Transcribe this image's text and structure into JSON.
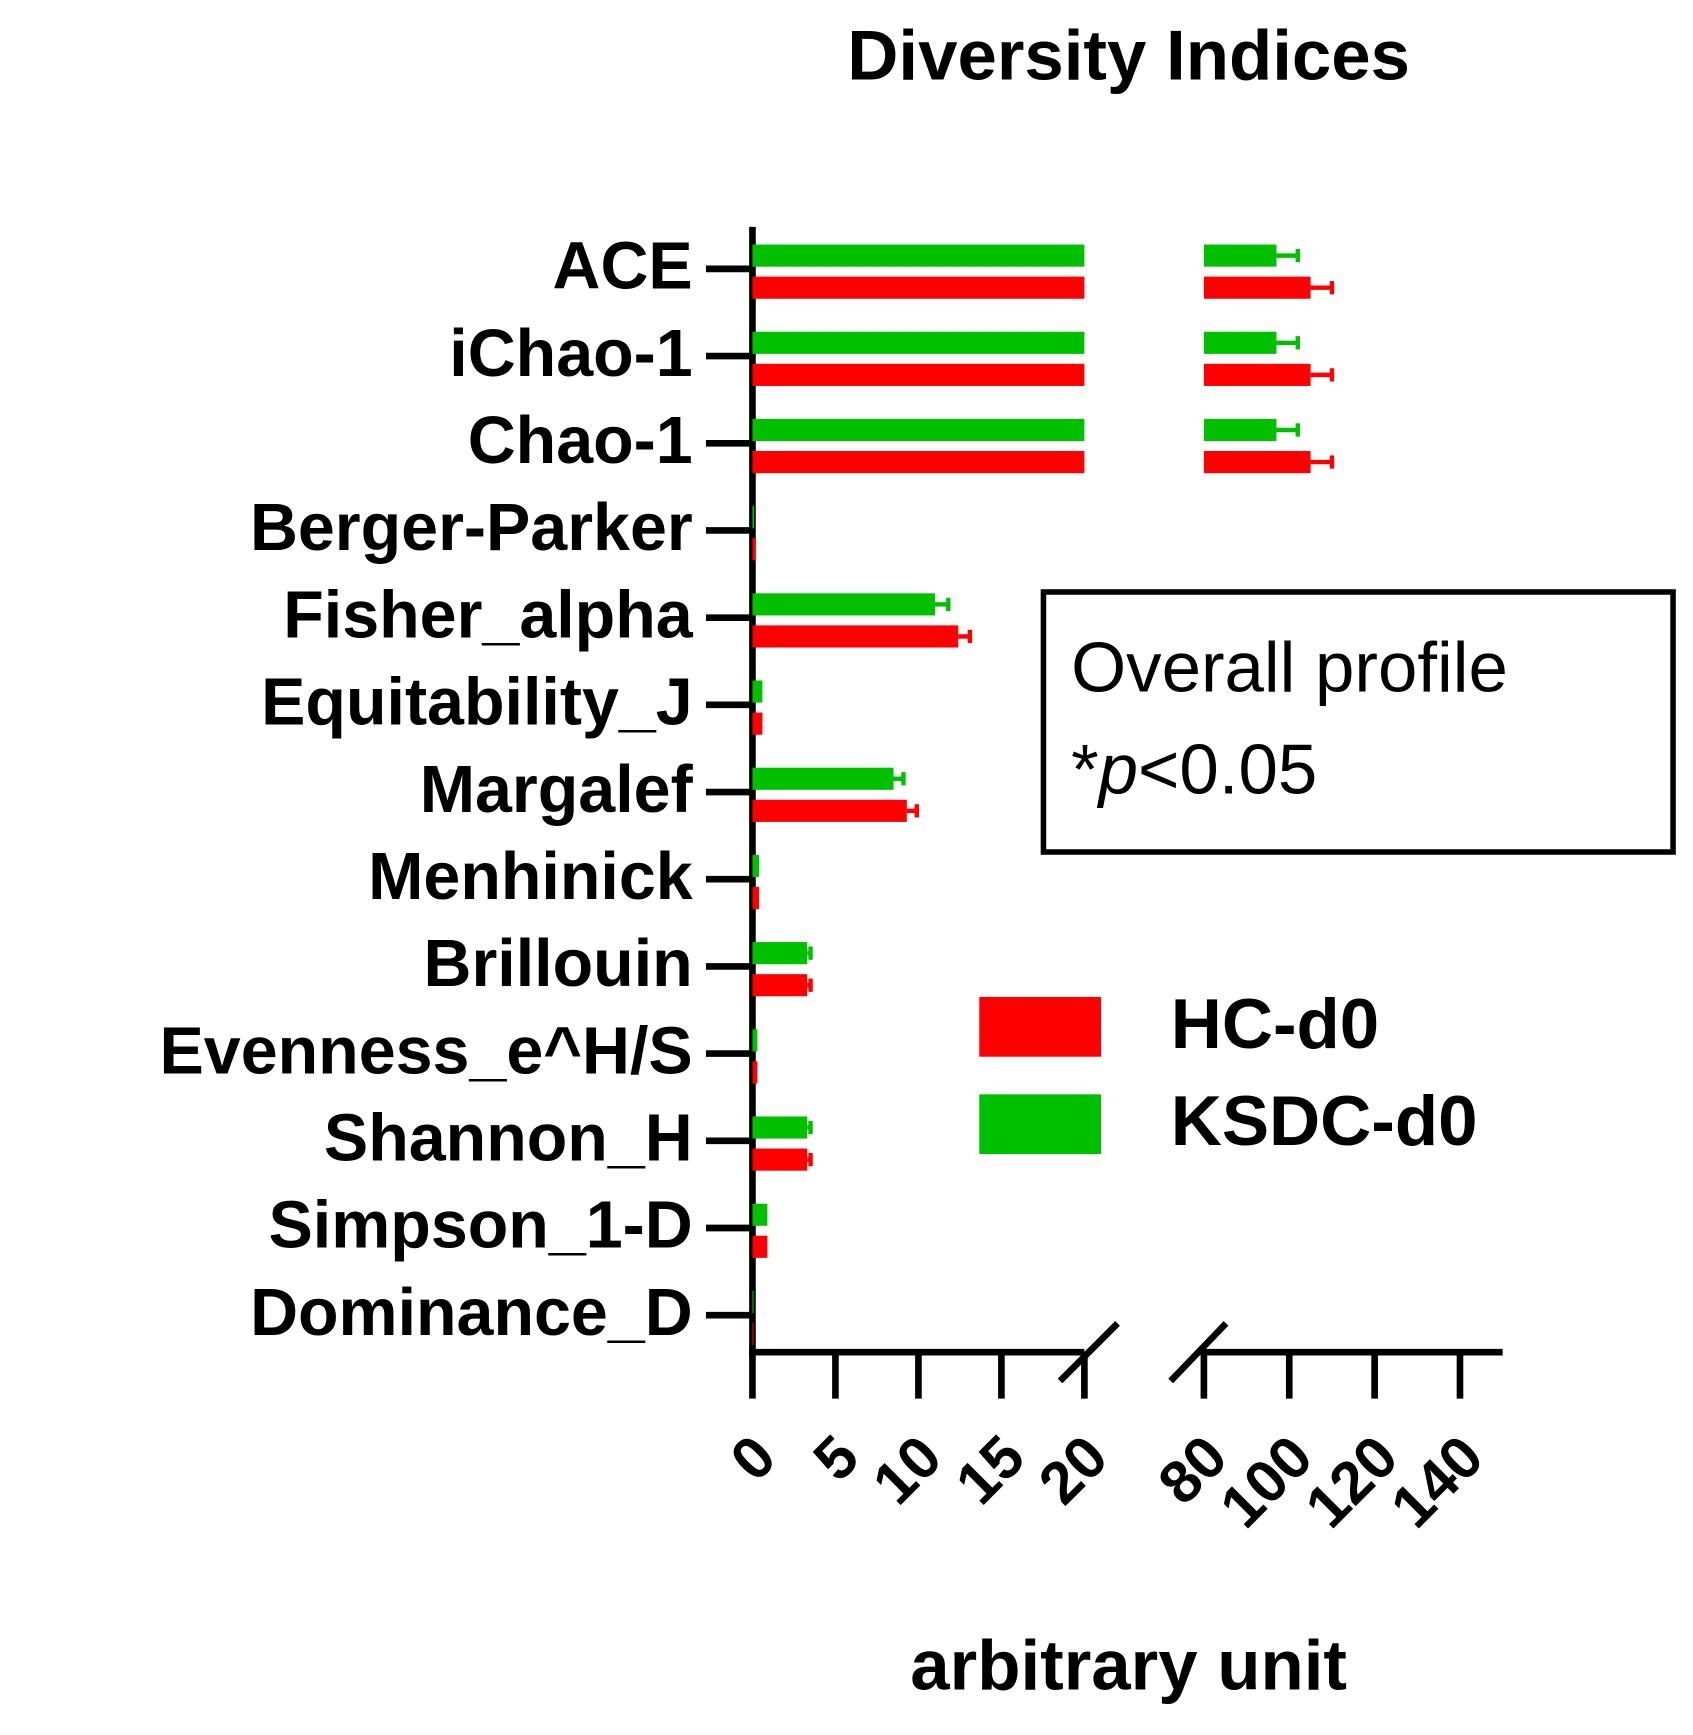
{
  "chart_data": {
    "type": "bar",
    "orientation": "horizontal",
    "title": "Diversity Indices",
    "x_label": "arbitrary unit",
    "categories": [
      "ACE",
      "iChao-1",
      "Chao-1",
      "Berger-Parker",
      "Fisher_alpha",
      "Equitability_J",
      "Margalef",
      "Menhinick",
      "Brillouin",
      "Evenness_e^H/S",
      "Shannon_H",
      "Simpson_1-D",
      "Dominance_D"
    ],
    "series": [
      {
        "name": "KSDC-d0",
        "color": "#00c000",
        "values": [
          97,
          97,
          97,
          0.1,
          11,
          0.6,
          8.5,
          0.4,
          3.3,
          0.3,
          3.3,
          0.9,
          0.05
        ],
        "errors": [
          5,
          5,
          5,
          0.02,
          0.8,
          0.02,
          0.6,
          0.03,
          0.2,
          0.02,
          0.2,
          0.02,
          0.01
        ]
      },
      {
        "name": "HC-d0",
        "color": "#ff0000",
        "values": [
          105,
          105,
          105,
          0.2,
          12.4,
          0.6,
          9.3,
          0.4,
          3.3,
          0.3,
          3.3,
          0.9,
          0.05
        ],
        "errors": [
          5,
          5,
          5,
          0.03,
          0.7,
          0.02,
          0.6,
          0.03,
          0.2,
          0.02,
          0.2,
          0.02,
          0.01
        ]
      }
    ],
    "x_segments": [
      [
        0,
        20
      ],
      [
        80,
        150
      ]
    ],
    "xticks": [
      0,
      5,
      10,
      15,
      20,
      80,
      100,
      120,
      140
    ],
    "legend_order": [
      1,
      0
    ],
    "annotation": [
      "Overall profile",
      "*",
      "p",
      "<0.05"
    ]
  }
}
